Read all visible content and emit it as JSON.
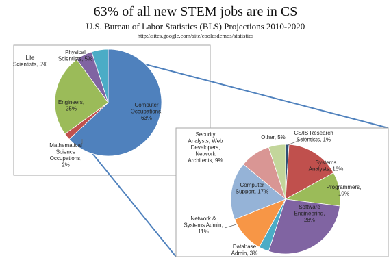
{
  "header": {
    "title": "63% of all new STEM jobs are in CS",
    "subtitle": "U.S. Bureau of Labor Statistics (BLS) Projections 2010-2020",
    "source": "http://sites.google.com/site/coolcsdemos/statistics"
  },
  "chart_data": [
    {
      "type": "pie",
      "slices": [
        {
          "label": "Computer Occupations, 63%",
          "value": 63,
          "color": "#4f81bd"
        },
        {
          "label": "Mathematical Science Occupations, 2%",
          "value": 2,
          "color": "#c0504d"
        },
        {
          "label": "Engineers, 25%",
          "value": 25,
          "color": "#9bbb59"
        },
        {
          "label": "Life Scientists, 5%",
          "value": 5,
          "color": "#8064a2"
        },
        {
          "label": "Physical Scientists, 5%",
          "value": 5,
          "color": "#4bacc6"
        }
      ]
    },
    {
      "type": "pie",
      "slices": [
        {
          "label": "CS/IS Research Scientists, 1%",
          "value": 1,
          "color": "#2c4d75"
        },
        {
          "label": "Systems Analysts, 16%",
          "value": 16,
          "color": "#c0504d"
        },
        {
          "label": "Programmers, 10%",
          "value": 10,
          "color": "#9bbb59"
        },
        {
          "label": "Software Engineering, 28%",
          "value": 28,
          "color": "#8064a2"
        },
        {
          "label": "Database Admin, 3%",
          "value": 3,
          "color": "#4bacc6"
        },
        {
          "label": "Network & Systems Admin, 11%",
          "value": 11,
          "color": "#f79646"
        },
        {
          "label": "Computer Support, 17%",
          "value": 17,
          "color": "#95b3d7"
        },
        {
          "label": "Security Analysts, Web Developers, Network Architects, 9%",
          "value": 9,
          "color": "#d99694"
        },
        {
          "label": "Other, 5%",
          "value": 5,
          "color": "#c3d69b"
        }
      ]
    }
  ],
  "labels": {
    "main": {
      "computer": [
        "Computer",
        "Occupations,",
        "63%"
      ],
      "engineers": [
        "Engineers,",
        "25%"
      ],
      "life": [
        "Life",
        "Scientists, 5%"
      ],
      "physical": [
        "Physical",
        "Scientists, 5%"
      ],
      "math": [
        "Mathematical",
        "Science",
        "Occupations,",
        "2%"
      ]
    },
    "detail": {
      "security": [
        "Security",
        "Analysts, Web",
        "Developers,",
        "Network",
        "Architects, 9%"
      ],
      "other": [
        "Other, 5%"
      ],
      "research": [
        "CS/IS Research",
        "Scientists, 1%"
      ],
      "systems": [
        "Systems",
        "Analysts, 16%"
      ],
      "programmers": [
        "Programmers,",
        "10%"
      ],
      "software": [
        "Software",
        "Engineering,",
        "28%"
      ],
      "database": [
        "Database",
        "Admin, 3%"
      ],
      "network": [
        "Network &",
        "Systems Admin,",
        "11%"
      ],
      "support": [
        "Computer",
        "Support, 17%"
      ]
    }
  }
}
